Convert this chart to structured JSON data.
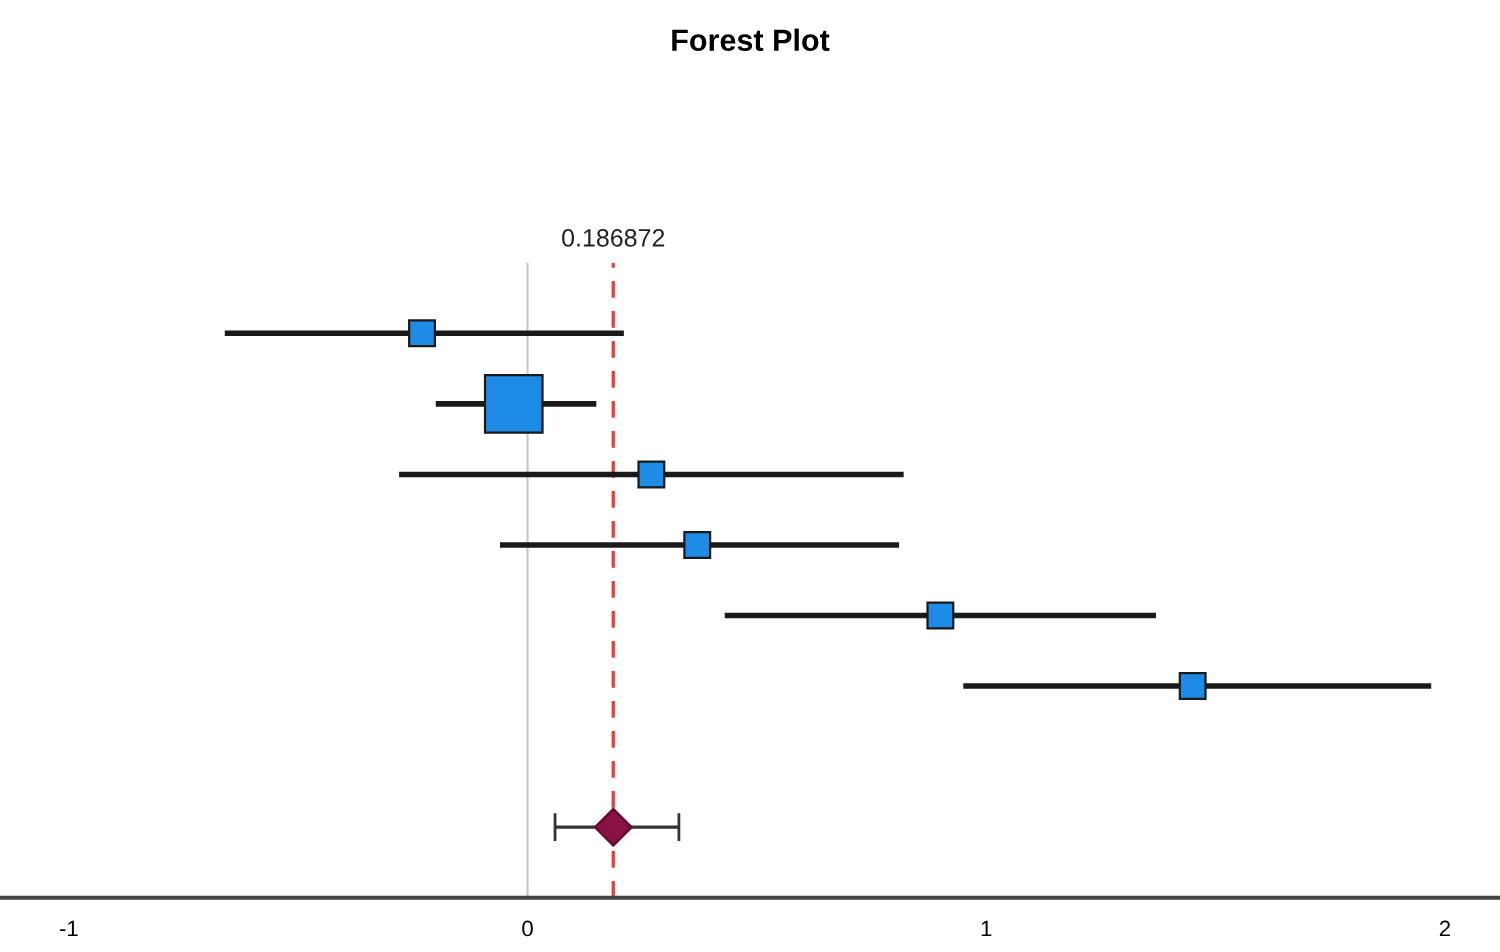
{
  "chart_data": {
    "type": "scatter",
    "title": "Forest Plot",
    "orientation": "horizontal",
    "categories": [
      null,
      null,
      null,
      null,
      null,
      null,
      null,
      null
    ],
    "series": [
      {
        "color": "#1e8ce6",
        "marker": "square",
        "values": [
          -0.23,
          -0.03,
          0.27,
          0.37,
          0.9,
          1.45,
          null,
          null
        ],
        "sizes": [
          0.2,
          1,
          0.2,
          0.2,
          0.2,
          0.2,
          null,
          null
        ],
        "errors": [
          [
            -0.66,
            0.21
          ],
          [
            -0.2,
            0.15
          ],
          [
            -0.28,
            0.82
          ],
          [
            -0.06,
            0.81
          ],
          [
            0.43,
            1.37
          ],
          [
            0.95,
            1.97
          ],
          null,
          null
        ]
      },
      {
        "color": "#8b1245",
        "marker": "diamond",
        "values": [
          null,
          null,
          null,
          null,
          null,
          null,
          null,
          0.187
        ],
        "errors": [
          null,
          null,
          null,
          null,
          null,
          null,
          null,
          [
            0.06,
            0.33
          ]
        ]
      }
    ],
    "xlim": [
      -1.15,
      2.12
    ],
    "xticks": [
      -1,
      0,
      1,
      2
    ],
    "grid": false,
    "legend": false,
    "ref_lines": [
      {
        "axis": "x",
        "value": 0,
        "color": "#c8c8c8",
        "line_style": "solid"
      },
      {
        "axis": "x",
        "value": 0.186872,
        "label": "0.186872",
        "color": "#e8413c",
        "line_style": "dashed"
      }
    ]
  }
}
